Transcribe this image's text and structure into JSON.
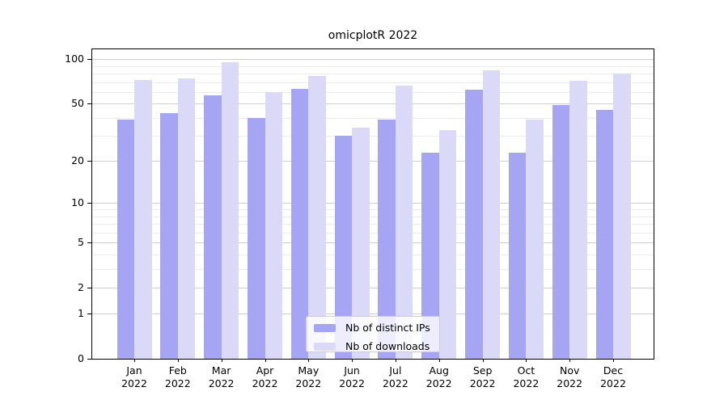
{
  "chart_data": {
    "type": "bar",
    "title": "omicplotR 2022",
    "categories": [
      "Jan",
      "Feb",
      "Mar",
      "Apr",
      "May",
      "Jun",
      "Jul",
      "Aug",
      "Sep",
      "Oct",
      "Nov",
      "Dec"
    ],
    "category_year": "2022",
    "series": [
      {
        "name": "Nb of distinct IPs",
        "color": "#a5a5f3",
        "values": [
          39,
          43,
          57,
          40,
          63,
          30,
          39,
          23,
          62,
          23,
          49,
          45
        ]
      },
      {
        "name": "Nb of downloads",
        "color": "#dadaf8",
        "values": [
          72,
          74,
          95,
          60,
          77,
          34,
          66,
          33,
          84,
          39,
          71,
          80
        ]
      }
    ],
    "xlabel": "",
    "ylabel": "",
    "yscale": "log1p",
    "ylim": [
      0,
      118
    ],
    "yticks": [
      0,
      1,
      2,
      5,
      10,
      20,
      50,
      100
    ],
    "minor_gridlines": [
      3,
      4,
      6,
      7,
      8,
      9,
      30,
      40,
      60,
      70,
      80,
      90
    ],
    "grid": true,
    "legend_position": "lower-center-inside",
    "colors": {
      "grid_major": "#cfcfcf",
      "grid_minor": "#ececec",
      "spine": "#000000",
      "text": "#000000",
      "background": "#ffffff"
    }
  }
}
